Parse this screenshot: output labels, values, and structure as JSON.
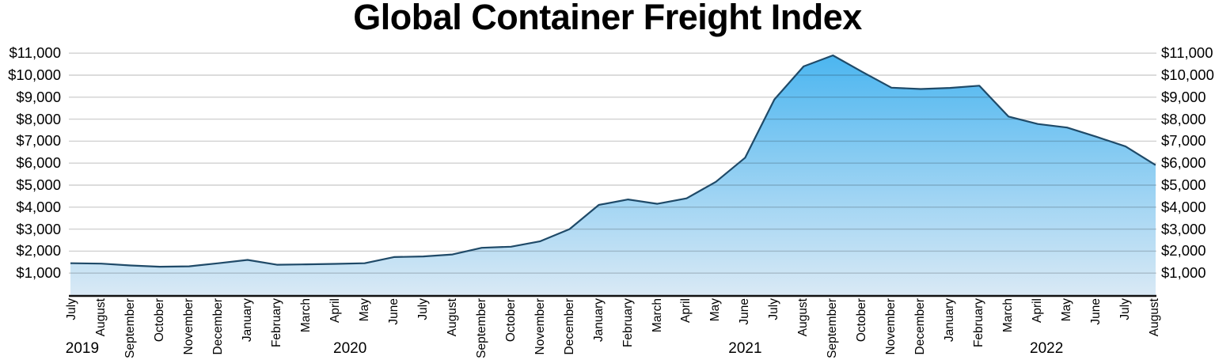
{
  "chart_data": {
    "type": "area",
    "title": "Global Container Freight Index",
    "currency_unit": "USD",
    "x_months": [
      "July",
      "August",
      "September",
      "October",
      "November",
      "December",
      "January",
      "February",
      "March",
      "April",
      "May",
      "June",
      "July",
      "August",
      "September",
      "October",
      "November",
      "December",
      "January",
      "February",
      "March",
      "April",
      "May",
      "June",
      "July",
      "August",
      "September",
      "October",
      "November",
      "December",
      "January",
      "February",
      "March",
      "April",
      "May",
      "June",
      "July",
      "August"
    ],
    "values": [
      1450,
      1430,
      1350,
      1290,
      1310,
      1450,
      1600,
      1380,
      1400,
      1420,
      1450,
      1730,
      1760,
      1850,
      2150,
      2200,
      2450,
      3000,
      4100,
      4350,
      4150,
      4400,
      5150,
      6250,
      8900,
      10400,
      10900,
      10150,
      9430,
      9370,
      9420,
      9520,
      8120,
      7780,
      7620,
      7200,
      6760,
      5930
    ],
    "years": [
      {
        "label": "2019",
        "month_index": 0.35
      },
      {
        "label": "2020",
        "month_index": 9.5
      },
      {
        "label": "2021",
        "month_index": 23.0
      },
      {
        "label": "2022",
        "month_index": 33.3
      }
    ],
    "y_ticks": [
      {
        "label": "$1,000",
        "value": 1000
      },
      {
        "label": "$2,000",
        "value": 2000
      },
      {
        "label": "$3,000",
        "value": 3000
      },
      {
        "label": "$4,000",
        "value": 4000
      },
      {
        "label": "$5,000",
        "value": 5000
      },
      {
        "label": "$6,000",
        "value": 6000
      },
      {
        "label": "$7,000",
        "value": 7000
      },
      {
        "label": "$8,000",
        "value": 8000
      },
      {
        "label": "$9,000",
        "value": 9000
      },
      {
        "label": "$10,000",
        "value": 10000
      },
      {
        "label": "$11,000",
        "value": 11000
      }
    ],
    "ylim": [
      0,
      11500
    ],
    "grid": true,
    "legend": "none",
    "axis_label_sides": [
      "left",
      "right"
    ],
    "colors": {
      "area_top": "#47b4f0",
      "area_bottom": "#d9e9f5",
      "line": "#1f4a68",
      "gridline_alpha_black": 0.18,
      "axis": "#111111",
      "text": "#000000"
    }
  }
}
